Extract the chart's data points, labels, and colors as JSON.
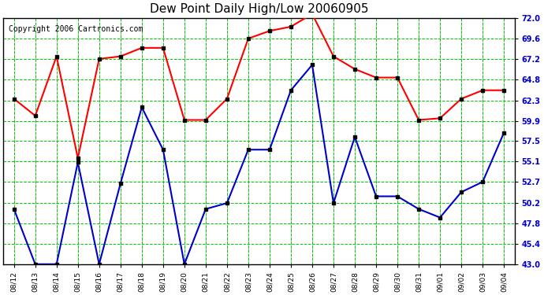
{
  "title": "Dew Point Daily High/Low 20060905",
  "copyright": "Copyright 2006 Cartronics.com",
  "dates": [
    "08/12",
    "08/13",
    "08/14",
    "08/15",
    "08/16",
    "08/17",
    "08/18",
    "08/19",
    "08/20",
    "08/21",
    "08/22",
    "08/23",
    "08/24",
    "08/25",
    "08/26",
    "08/27",
    "08/28",
    "08/29",
    "08/30",
    "08/31",
    "09/01",
    "09/02",
    "09/03",
    "09/04"
  ],
  "high_values": [
    62.5,
    60.5,
    67.5,
    55.5,
    67.2,
    67.5,
    68.5,
    68.5,
    60.0,
    60.0,
    62.5,
    69.6,
    70.5,
    71.0,
    72.5,
    67.5,
    66.0,
    65.0,
    65.0,
    60.0,
    60.2,
    62.5,
    63.5,
    63.5
  ],
  "low_values": [
    49.5,
    43.0,
    43.0,
    55.0,
    43.0,
    52.5,
    61.5,
    56.5,
    43.0,
    49.5,
    50.2,
    56.5,
    56.5,
    63.5,
    66.5,
    50.2,
    58.0,
    51.0,
    51.0,
    49.5,
    48.5,
    51.5,
    52.7,
    58.5
  ],
  "ylim": [
    43.0,
    72.0
  ],
  "yticks": [
    43.0,
    45.4,
    47.8,
    50.2,
    52.7,
    55.1,
    57.5,
    59.9,
    62.3,
    64.8,
    67.2,
    69.6,
    72.0
  ],
  "high_color": "#ff0000",
  "low_color": "#0000cc",
  "bg_color": "#ffffff",
  "plot_bg_color": "#ffffff",
  "grid_color": "#00cc00",
  "title_color": "#000000",
  "marker": "s",
  "marker_size": 3,
  "marker_color": "#000000",
  "line_width": 1.5
}
